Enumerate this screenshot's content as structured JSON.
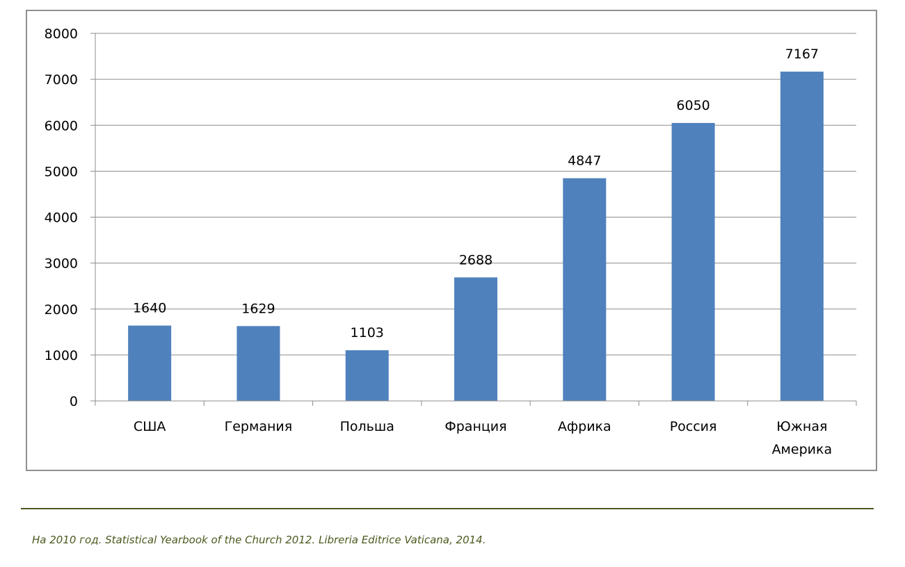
{
  "chart_data": {
    "type": "bar",
    "categories": [
      "США",
      "Германия",
      "Польша",
      "Франция",
      "Африка",
      "Россия",
      "Южная Америка"
    ],
    "category_lines": [
      [
        "США"
      ],
      [
        "Германия"
      ],
      [
        "Польша"
      ],
      [
        "Франция"
      ],
      [
        "Африка"
      ],
      [
        "Россия"
      ],
      [
        "Южная",
        "Америка"
      ]
    ],
    "values": [
      1640,
      1629,
      1103,
      2688,
      4847,
      6050,
      7167
    ],
    "title": "",
    "xlabel": "",
    "ylabel": "",
    "ylim": [
      0,
      8000
    ],
    "yticks": [
      0,
      1000,
      2000,
      3000,
      4000,
      5000,
      6000,
      7000,
      8000
    ],
    "grid": true,
    "legend": "none",
    "bar_color": "#4f81bd",
    "grid_color": "#8c8c8c",
    "data_labels": true
  },
  "source": {
    "text": "На 2010 год. Statistical Yearbook of the Church 2012. Libreria Editrice Vaticana, 2014."
  }
}
